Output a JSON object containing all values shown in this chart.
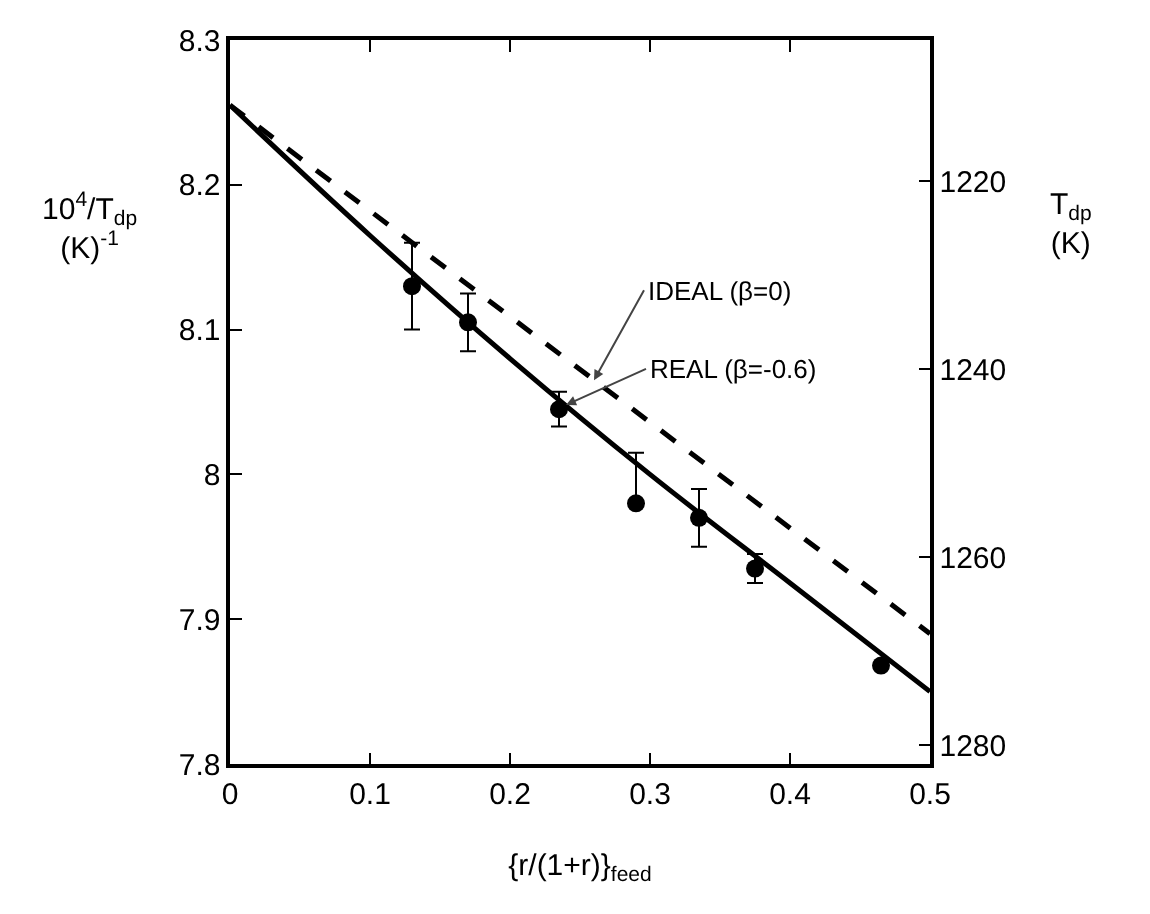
{
  "chart_data": {
    "type": "scatter",
    "xlabel": "{r/(1+r)}$_{feed}$",
    "ylabel": "10$^{4}$/T$_{dp}$ (K)$^{-1}$",
    "y2label": "T$_{dp}$ (K)",
    "xlim": [
      0,
      0.5
    ],
    "xticks": [
      0,
      0.1,
      0.2,
      0.3,
      0.4,
      0.5
    ],
    "ylim": [
      7.8,
      8.3
    ],
    "yticks": [
      7.8,
      7.9,
      8.0,
      8.1,
      8.2,
      8.3
    ],
    "y2lim": [
      1282,
      1205
    ],
    "y2ticks": [
      1220,
      1240,
      1260,
      1280
    ],
    "grid": false,
    "series": [
      {
        "type": "line",
        "line_style": "dashed",
        "color": "#000000",
        "x": [
          0,
          0.5
        ],
        "values": [
          8.255,
          7.89
        ]
      },
      {
        "type": "line",
        "line_style": "solid",
        "color": "#000000",
        "x": [
          0,
          0.1,
          0.2,
          0.3,
          0.4,
          0.5
        ],
        "values": [
          8.255,
          8.165,
          8.08,
          8.0,
          7.925,
          7.85
        ]
      },
      {
        "marker": "circle",
        "color": "#000000",
        "x": [
          0.13,
          0.17,
          0.235,
          0.29,
          0.335,
          0.375,
          0.465
        ],
        "values": [
          8.13,
          8.105,
          8.045,
          7.98,
          7.97,
          7.935,
          7.868
        ],
        "errors": [
          0.03,
          0.02,
          0.012,
          [
            7.98,
            8.015
          ],
          0.02,
          0.01,
          null
        ]
      }
    ],
    "annotations": [
      {
        "text": "IDEAL (β=0)",
        "x": 0.26,
        "y": 8.065
      },
      {
        "text": "REAL (β=-0.6)",
        "x": 0.24,
        "y": 8.048
      }
    ]
  }
}
